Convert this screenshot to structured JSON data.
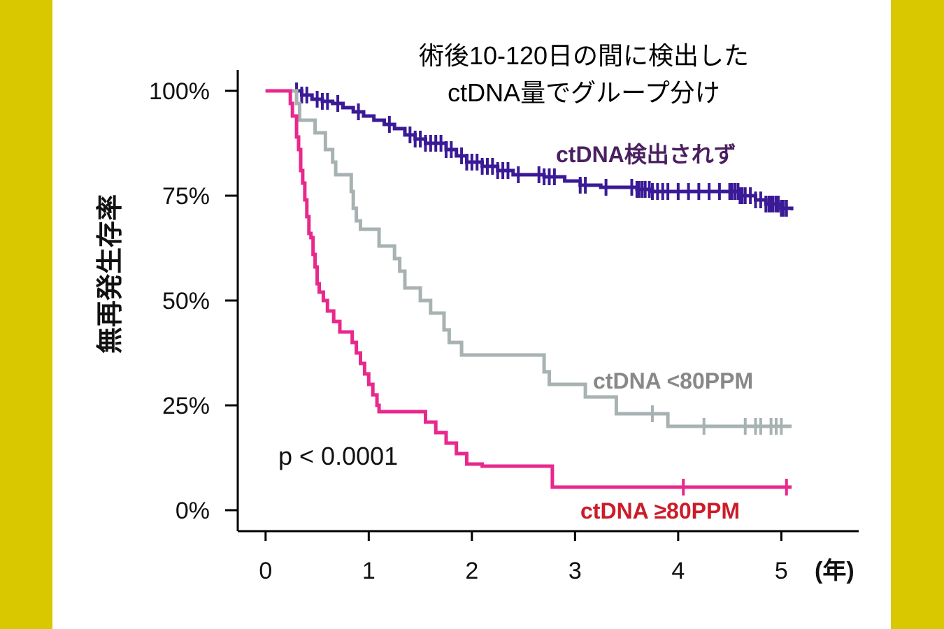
{
  "chart_data": {
    "type": "line",
    "title_lines": [
      "術後10-120日の間に検出した",
      "ctDNA量でグループ分け"
    ],
    "ylabel": "無再発生存率",
    "xunit_label": "(年)",
    "x_ticks": [
      0,
      1,
      2,
      3,
      4,
      5
    ],
    "x_tick_labels": [
      "0",
      "1",
      "2",
      "3",
      "4",
      "5"
    ],
    "y_ticks": [
      0,
      25,
      50,
      75,
      100
    ],
    "y_tick_labels": [
      "0%",
      "25%",
      "50%",
      "75%",
      "100%"
    ],
    "xlim": [
      -0.27,
      5.75
    ],
    "ylim": [
      -5,
      105
    ],
    "annotation": "p < 0.0001",
    "grid": false,
    "series": [
      {
        "name": "ctDNA検出されず",
        "color": "#3a1a96",
        "label_color": "#4a2060",
        "step_points": [
          [
            0,
            100
          ],
          [
            0.3,
            100
          ],
          [
            0.35,
            99
          ],
          [
            0.45,
            98
          ],
          [
            0.55,
            97.5
          ],
          [
            0.65,
            97
          ],
          [
            0.75,
            96
          ],
          [
            0.85,
            95
          ],
          [
            0.95,
            94
          ],
          [
            1.05,
            93
          ],
          [
            1.15,
            92
          ],
          [
            1.25,
            91
          ],
          [
            1.35,
            89.5
          ],
          [
            1.45,
            88.5
          ],
          [
            1.55,
            87.5
          ],
          [
            1.75,
            86
          ],
          [
            1.85,
            84.5
          ],
          [
            1.95,
            83
          ],
          [
            2.1,
            82
          ],
          [
            2.25,
            81
          ],
          [
            2.4,
            80
          ],
          [
            2.7,
            79.5
          ],
          [
            2.9,
            78.5
          ],
          [
            3.05,
            77.5
          ],
          [
            3.25,
            77
          ],
          [
            3.6,
            76.5
          ],
          [
            3.75,
            76
          ],
          [
            4.6,
            75
          ],
          [
            4.75,
            74
          ],
          [
            4.85,
            73
          ],
          [
            5.0,
            72
          ],
          [
            5.1,
            71.5
          ]
        ],
        "censor_x": [
          0.3,
          0.35,
          0.4,
          0.5,
          0.55,
          0.6,
          0.7,
          0.9,
          1.2,
          1.4,
          1.45,
          1.5,
          1.55,
          1.6,
          1.65,
          1.7,
          1.75,
          1.8,
          1.9,
          1.95,
          2.0,
          2.05,
          2.1,
          2.15,
          2.2,
          2.25,
          2.3,
          2.35,
          2.45,
          2.65,
          2.7,
          2.75,
          2.8,
          3.05,
          3.1,
          3.3,
          3.55,
          3.6,
          3.62,
          3.65,
          3.68,
          3.72,
          3.75,
          3.8,
          3.85,
          3.9,
          4.0,
          4.1,
          4.2,
          4.3,
          4.4,
          4.5,
          4.52,
          4.55,
          4.58,
          4.6,
          4.62,
          4.65,
          4.7,
          4.75,
          4.8,
          4.85,
          4.88,
          4.9,
          4.92,
          4.95,
          4.97,
          5.0,
          5.02,
          5.05
        ]
      },
      {
        "name": "ctDNA <80PPM",
        "color": "#a8b2b2",
        "label_color": "#888888",
        "step_points": [
          [
            0,
            100
          ],
          [
            0.27,
            100
          ],
          [
            0.3,
            97
          ],
          [
            0.33,
            93
          ],
          [
            0.45,
            93
          ],
          [
            0.48,
            90
          ],
          [
            0.55,
            90
          ],
          [
            0.58,
            86
          ],
          [
            0.65,
            83
          ],
          [
            0.68,
            80
          ],
          [
            0.8,
            80
          ],
          [
            0.83,
            76
          ],
          [
            0.85,
            72
          ],
          [
            0.88,
            69
          ],
          [
            0.92,
            67
          ],
          [
            1.05,
            67
          ],
          [
            1.1,
            63
          ],
          [
            1.22,
            63
          ],
          [
            1.25,
            60
          ],
          [
            1.3,
            57
          ],
          [
            1.35,
            53
          ],
          [
            1.5,
            50
          ],
          [
            1.58,
            50
          ],
          [
            1.6,
            47
          ],
          [
            1.7,
            47
          ],
          [
            1.73,
            43
          ],
          [
            1.78,
            40
          ],
          [
            1.88,
            40
          ],
          [
            1.9,
            37
          ],
          [
            2.05,
            37
          ],
          [
            2.1,
            37
          ],
          [
            2.45,
            37
          ],
          [
            2.65,
            37
          ],
          [
            2.7,
            33
          ],
          [
            2.75,
            30
          ],
          [
            2.8,
            30
          ],
          [
            3.05,
            30
          ],
          [
            3.1,
            27
          ],
          [
            3.35,
            27
          ],
          [
            3.4,
            23
          ],
          [
            3.55,
            23
          ],
          [
            3.85,
            23
          ],
          [
            3.9,
            20
          ],
          [
            4.0,
            20
          ],
          [
            5.1,
            20
          ]
        ],
        "censor_x": [
          3.75,
          4.25,
          4.65,
          4.75,
          4.8,
          4.9,
          4.95,
          5.0
        ]
      },
      {
        "name": "ctDNA ≥80PPM",
        "color": "#e8288c",
        "label_color": "#cc1c2a",
        "step_points": [
          [
            0,
            100
          ],
          [
            0.22,
            100
          ],
          [
            0.24,
            97
          ],
          [
            0.26,
            94
          ],
          [
            0.3,
            89
          ],
          [
            0.32,
            86
          ],
          [
            0.34,
            81
          ],
          [
            0.36,
            78
          ],
          [
            0.38,
            74
          ],
          [
            0.4,
            70
          ],
          [
            0.42,
            66
          ],
          [
            0.44,
            65
          ],
          [
            0.46,
            61
          ],
          [
            0.48,
            58
          ],
          [
            0.5,
            54
          ],
          [
            0.52,
            52
          ],
          [
            0.56,
            50
          ],
          [
            0.6,
            47.5
          ],
          [
            0.66,
            45
          ],
          [
            0.72,
            42.5
          ],
          [
            0.8,
            42.5
          ],
          [
            0.84,
            40
          ],
          [
            0.88,
            37.5
          ],
          [
            0.92,
            35
          ],
          [
            0.96,
            32.5
          ],
          [
            1.0,
            30
          ],
          [
            1.04,
            27.5
          ],
          [
            1.08,
            25
          ],
          [
            1.1,
            23.5
          ],
          [
            1.4,
            23.5
          ],
          [
            1.55,
            21
          ],
          [
            1.65,
            18.5
          ],
          [
            1.75,
            16
          ],
          [
            1.85,
            13.5
          ],
          [
            1.95,
            11
          ],
          [
            2.05,
            11
          ],
          [
            2.1,
            10.5
          ],
          [
            2.25,
            10.5
          ],
          [
            2.35,
            10.5
          ],
          [
            2.5,
            10.5
          ],
          [
            2.75,
            10.5
          ],
          [
            2.78,
            5.5
          ],
          [
            5.1,
            5.5
          ]
        ],
        "censor_x": [
          4.05,
          5.05
        ]
      }
    ]
  }
}
